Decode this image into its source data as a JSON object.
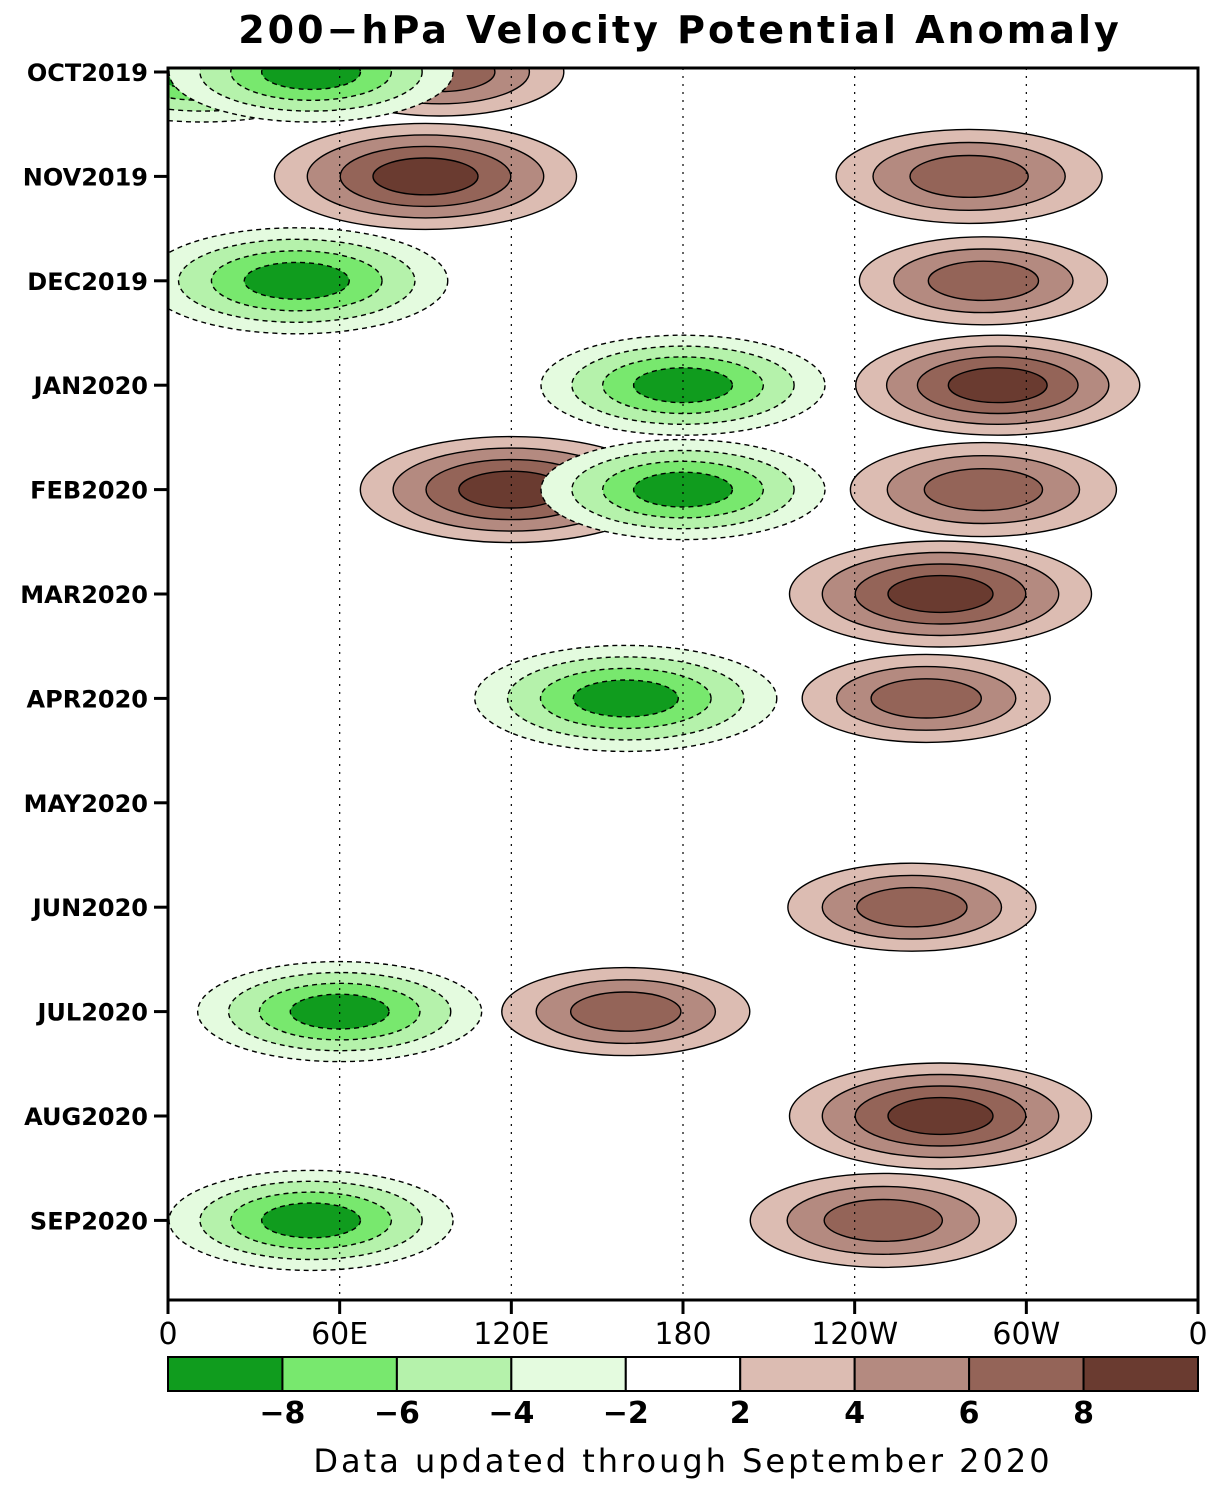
{
  "chart_data": {
    "type": "heatmap",
    "title": "200−hPa Velocity Potential Anomaly",
    "note": "Data updated through September 2020",
    "x_axis": {
      "ticks": [
        "0",
        "60E",
        "120E",
        "180",
        "120W",
        "60W",
        "0"
      ],
      "tick_longitudes": [
        0,
        60,
        120,
        180,
        240,
        300,
        360
      ],
      "range": [
        0,
        360
      ]
    },
    "y_axis": {
      "ticks": [
        "OCT2019",
        "NOV2019",
        "DEC2019",
        "JAN2020",
        "FEB2020",
        "MAR2020",
        "APR2020",
        "MAY2020",
        "JUN2020",
        "JUL2020",
        "AUG2020",
        "SEP2020"
      ],
      "range": [
        "OCT2019",
        "SEP2020"
      ],
      "inverted": true
    },
    "colorbar": {
      "labels": [
        "−8",
        "−6",
        "−4",
        "−2",
        "2",
        "4",
        "6",
        "8"
      ],
      "colors": [
        "#109c1e",
        "#78e86e",
        "#b5f2ab",
        "#e4fbdf",
        "#ffffff",
        "#dcbcb2",
        "#b48a80",
        "#946458",
        "#6a3b30"
      ]
    },
    "contour_label": "0",
    "grid_lines": "dotted, at 60E, 120E, 180, 120W, 60W",
    "features": [
      {
        "lon": 95,
        "time": "OCT2019",
        "value": 6
      },
      {
        "lon": 12,
        "time": "OCT2019",
        "value": -8
      },
      {
        "lon": 50,
        "time": "OCT2019",
        "value": -8
      },
      {
        "lon": 280,
        "time": "NOV2019",
        "value": 7
      },
      {
        "lon": 90,
        "time": "NOV2019",
        "value": 9
      },
      {
        "lon": 45,
        "time": "DEC2019",
        "value": -9
      },
      {
        "lon": 285,
        "time": "DEC2019",
        "value": 6
      },
      {
        "lon": 290,
        "time": "JAN2020",
        "value": 8
      },
      {
        "lon": 180,
        "time": "JAN2020",
        "value": -8
      },
      {
        "lon": 120,
        "time": "FEB2020",
        "value": 9
      },
      {
        "lon": 180,
        "time": "FEB2020",
        "value": -8
      },
      {
        "lon": 285,
        "time": "FEB2020",
        "value": 7
      },
      {
        "lon": 270,
        "time": "MAR2020",
        "value": 9
      },
      {
        "lon": 160,
        "time": "APR2020",
        "value": -9
      },
      {
        "lon": 265,
        "time": "APR2020",
        "value": 6
      },
      {
        "lon": 260,
        "time": "JUN2020",
        "value": 6
      },
      {
        "lon": 160,
        "time": "JUL2020",
        "value": 6
      },
      {
        "lon": 60,
        "time": "JUL2020",
        "value": -8
      },
      {
        "lon": 270,
        "time": "AUG2020",
        "value": 9
      },
      {
        "lon": 250,
        "time": "SEP2020",
        "value": 7
      },
      {
        "lon": 50,
        "time": "SEP2020",
        "value": -8
      }
    ]
  }
}
